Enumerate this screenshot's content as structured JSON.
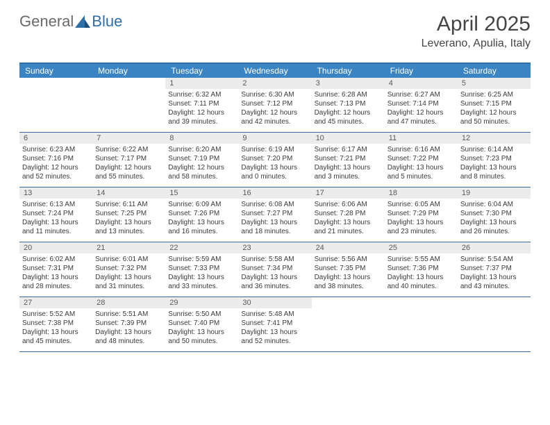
{
  "logo": {
    "text_general": "General",
    "text_blue": "Blue",
    "icon_fill": "#2f6fa8"
  },
  "month_title": "April 2025",
  "location": "Leverano, Apulia, Italy",
  "colors": {
    "header_bar": "#3b84c4",
    "rule": "#356a9a",
    "daynum_bg": "#ececec",
    "text_dark": "#454545",
    "text_body": "#3a3a3a"
  },
  "days_of_week": [
    "Sunday",
    "Monday",
    "Tuesday",
    "Wednesday",
    "Thursday",
    "Friday",
    "Saturday"
  ],
  "weeks": [
    [
      {
        "empty": true
      },
      {
        "empty": true
      },
      {
        "num": "1",
        "sunrise": "Sunrise: 6:32 AM",
        "sunset": "Sunset: 7:11 PM",
        "daylight": "Daylight: 12 hours and 39 minutes."
      },
      {
        "num": "2",
        "sunrise": "Sunrise: 6:30 AM",
        "sunset": "Sunset: 7:12 PM",
        "daylight": "Daylight: 12 hours and 42 minutes."
      },
      {
        "num": "3",
        "sunrise": "Sunrise: 6:28 AM",
        "sunset": "Sunset: 7:13 PM",
        "daylight": "Daylight: 12 hours and 45 minutes."
      },
      {
        "num": "4",
        "sunrise": "Sunrise: 6:27 AM",
        "sunset": "Sunset: 7:14 PM",
        "daylight": "Daylight: 12 hours and 47 minutes."
      },
      {
        "num": "5",
        "sunrise": "Sunrise: 6:25 AM",
        "sunset": "Sunset: 7:15 PM",
        "daylight": "Daylight: 12 hours and 50 minutes."
      }
    ],
    [
      {
        "num": "6",
        "sunrise": "Sunrise: 6:23 AM",
        "sunset": "Sunset: 7:16 PM",
        "daylight": "Daylight: 12 hours and 52 minutes."
      },
      {
        "num": "7",
        "sunrise": "Sunrise: 6:22 AM",
        "sunset": "Sunset: 7:17 PM",
        "daylight": "Daylight: 12 hours and 55 minutes."
      },
      {
        "num": "8",
        "sunrise": "Sunrise: 6:20 AM",
        "sunset": "Sunset: 7:19 PM",
        "daylight": "Daylight: 12 hours and 58 minutes."
      },
      {
        "num": "9",
        "sunrise": "Sunrise: 6:19 AM",
        "sunset": "Sunset: 7:20 PM",
        "daylight": "Daylight: 13 hours and 0 minutes."
      },
      {
        "num": "10",
        "sunrise": "Sunrise: 6:17 AM",
        "sunset": "Sunset: 7:21 PM",
        "daylight": "Daylight: 13 hours and 3 minutes."
      },
      {
        "num": "11",
        "sunrise": "Sunrise: 6:16 AM",
        "sunset": "Sunset: 7:22 PM",
        "daylight": "Daylight: 13 hours and 5 minutes."
      },
      {
        "num": "12",
        "sunrise": "Sunrise: 6:14 AM",
        "sunset": "Sunset: 7:23 PM",
        "daylight": "Daylight: 13 hours and 8 minutes."
      }
    ],
    [
      {
        "num": "13",
        "sunrise": "Sunrise: 6:13 AM",
        "sunset": "Sunset: 7:24 PM",
        "daylight": "Daylight: 13 hours and 11 minutes."
      },
      {
        "num": "14",
        "sunrise": "Sunrise: 6:11 AM",
        "sunset": "Sunset: 7:25 PM",
        "daylight": "Daylight: 13 hours and 13 minutes."
      },
      {
        "num": "15",
        "sunrise": "Sunrise: 6:09 AM",
        "sunset": "Sunset: 7:26 PM",
        "daylight": "Daylight: 13 hours and 16 minutes."
      },
      {
        "num": "16",
        "sunrise": "Sunrise: 6:08 AM",
        "sunset": "Sunset: 7:27 PM",
        "daylight": "Daylight: 13 hours and 18 minutes."
      },
      {
        "num": "17",
        "sunrise": "Sunrise: 6:06 AM",
        "sunset": "Sunset: 7:28 PM",
        "daylight": "Daylight: 13 hours and 21 minutes."
      },
      {
        "num": "18",
        "sunrise": "Sunrise: 6:05 AM",
        "sunset": "Sunset: 7:29 PM",
        "daylight": "Daylight: 13 hours and 23 minutes."
      },
      {
        "num": "19",
        "sunrise": "Sunrise: 6:04 AM",
        "sunset": "Sunset: 7:30 PM",
        "daylight": "Daylight: 13 hours and 26 minutes."
      }
    ],
    [
      {
        "num": "20",
        "sunrise": "Sunrise: 6:02 AM",
        "sunset": "Sunset: 7:31 PM",
        "daylight": "Daylight: 13 hours and 28 minutes."
      },
      {
        "num": "21",
        "sunrise": "Sunrise: 6:01 AM",
        "sunset": "Sunset: 7:32 PM",
        "daylight": "Daylight: 13 hours and 31 minutes."
      },
      {
        "num": "22",
        "sunrise": "Sunrise: 5:59 AM",
        "sunset": "Sunset: 7:33 PM",
        "daylight": "Daylight: 13 hours and 33 minutes."
      },
      {
        "num": "23",
        "sunrise": "Sunrise: 5:58 AM",
        "sunset": "Sunset: 7:34 PM",
        "daylight": "Daylight: 13 hours and 36 minutes."
      },
      {
        "num": "24",
        "sunrise": "Sunrise: 5:56 AM",
        "sunset": "Sunset: 7:35 PM",
        "daylight": "Daylight: 13 hours and 38 minutes."
      },
      {
        "num": "25",
        "sunrise": "Sunrise: 5:55 AM",
        "sunset": "Sunset: 7:36 PM",
        "daylight": "Daylight: 13 hours and 40 minutes."
      },
      {
        "num": "26",
        "sunrise": "Sunrise: 5:54 AM",
        "sunset": "Sunset: 7:37 PM",
        "daylight": "Daylight: 13 hours and 43 minutes."
      }
    ],
    [
      {
        "num": "27",
        "sunrise": "Sunrise: 5:52 AM",
        "sunset": "Sunset: 7:38 PM",
        "daylight": "Daylight: 13 hours and 45 minutes."
      },
      {
        "num": "28",
        "sunrise": "Sunrise: 5:51 AM",
        "sunset": "Sunset: 7:39 PM",
        "daylight": "Daylight: 13 hours and 48 minutes."
      },
      {
        "num": "29",
        "sunrise": "Sunrise: 5:50 AM",
        "sunset": "Sunset: 7:40 PM",
        "daylight": "Daylight: 13 hours and 50 minutes."
      },
      {
        "num": "30",
        "sunrise": "Sunrise: 5:48 AM",
        "sunset": "Sunset: 7:41 PM",
        "daylight": "Daylight: 13 hours and 52 minutes."
      },
      {
        "empty": true
      },
      {
        "empty": true
      },
      {
        "empty": true
      }
    ]
  ]
}
